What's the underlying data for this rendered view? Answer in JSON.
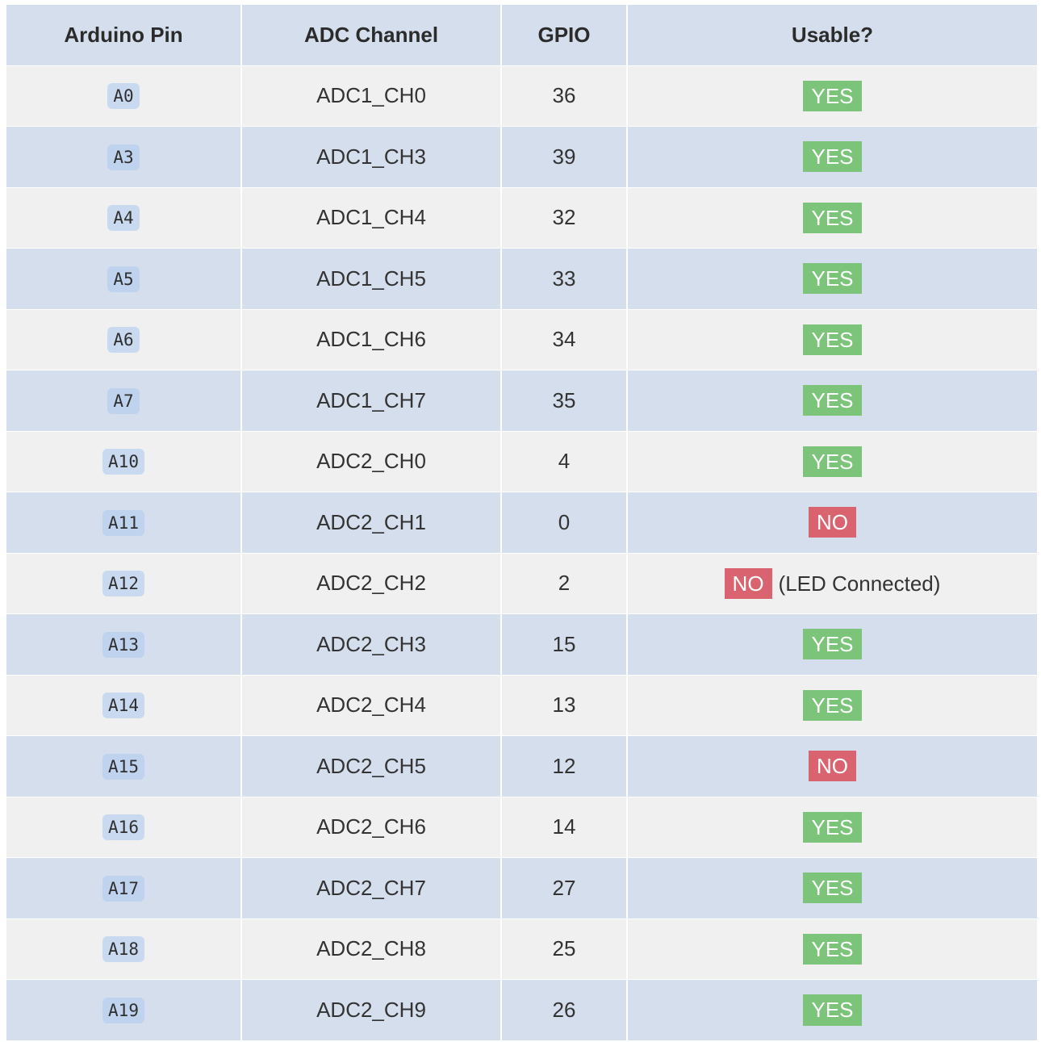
{
  "colors": {
    "header_bg": "#d5deec",
    "row_light": "#f0f0f0",
    "row_blue": "#d5deec",
    "yes_badge": "#7dc47b",
    "no_badge": "#d9646f",
    "pin_chip": "#c9daf0"
  },
  "table": {
    "headers": [
      "Arduino Pin",
      "ADC Channel",
      "GPIO",
      "Usable?"
    ],
    "rows": [
      {
        "pin": "A0",
        "channel": "ADC1_CH0",
        "gpio": "36",
        "usable": "YES",
        "status": "yes",
        "note": ""
      },
      {
        "pin": "A3",
        "channel": "ADC1_CH3",
        "gpio": "39",
        "usable": "YES",
        "status": "yes",
        "note": ""
      },
      {
        "pin": "A4",
        "channel": "ADC1_CH4",
        "gpio": "32",
        "usable": "YES",
        "status": "yes",
        "note": ""
      },
      {
        "pin": "A5",
        "channel": "ADC1_CH5",
        "gpio": "33",
        "usable": "YES",
        "status": "yes",
        "note": ""
      },
      {
        "pin": "A6",
        "channel": "ADC1_CH6",
        "gpio": "34",
        "usable": "YES",
        "status": "yes",
        "note": ""
      },
      {
        "pin": "A7",
        "channel": "ADC1_CH7",
        "gpio": "35",
        "usable": "YES",
        "status": "yes",
        "note": ""
      },
      {
        "pin": "A10",
        "channel": "ADC2_CH0",
        "gpio": "4",
        "usable": "YES",
        "status": "yes",
        "note": ""
      },
      {
        "pin": "A11",
        "channel": "ADC2_CH1",
        "gpio": "0",
        "usable": "NO",
        "status": "no",
        "note": ""
      },
      {
        "pin": "A12",
        "channel": "ADC2_CH2",
        "gpio": "2",
        "usable": "NO",
        "status": "no",
        "note": "(LED Connected)"
      },
      {
        "pin": "A13",
        "channel": "ADC2_CH3",
        "gpio": "15",
        "usable": "YES",
        "status": "yes",
        "note": ""
      },
      {
        "pin": "A14",
        "channel": "ADC2_CH4",
        "gpio": "13",
        "usable": "YES",
        "status": "yes",
        "note": ""
      },
      {
        "pin": "A15",
        "channel": "ADC2_CH5",
        "gpio": "12",
        "usable": "NO",
        "status": "no",
        "note": ""
      },
      {
        "pin": "A16",
        "channel": "ADC2_CH6",
        "gpio": "14",
        "usable": "YES",
        "status": "yes",
        "note": ""
      },
      {
        "pin": "A17",
        "channel": "ADC2_CH7",
        "gpio": "27",
        "usable": "YES",
        "status": "yes",
        "note": ""
      },
      {
        "pin": "A18",
        "channel": "ADC2_CH8",
        "gpio": "25",
        "usable": "YES",
        "status": "yes",
        "note": ""
      },
      {
        "pin": "A19",
        "channel": "ADC2_CH9",
        "gpio": "26",
        "usable": "YES",
        "status": "yes",
        "note": ""
      }
    ]
  }
}
